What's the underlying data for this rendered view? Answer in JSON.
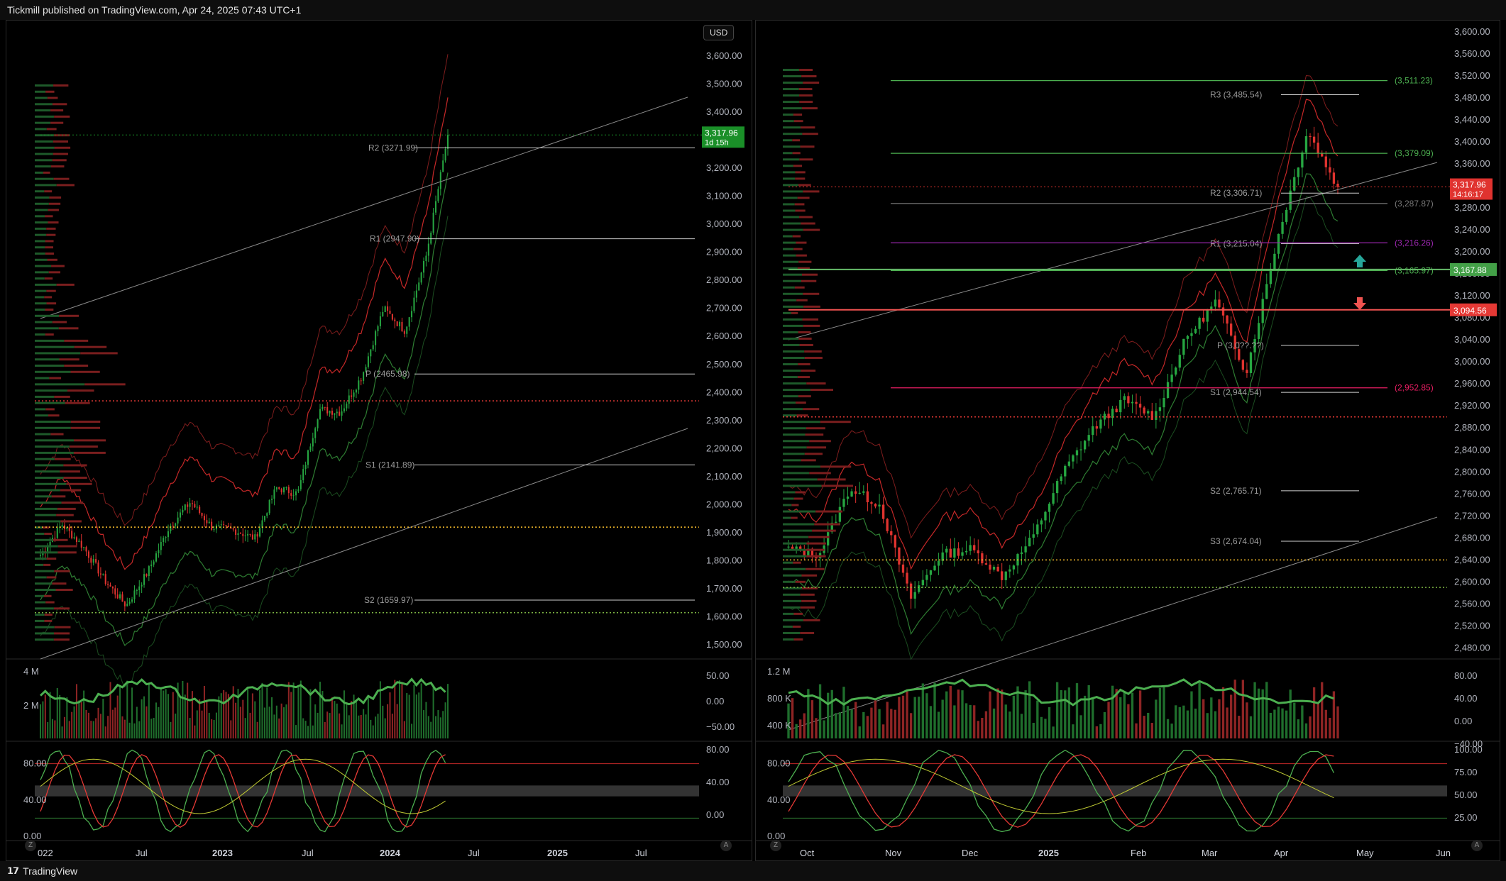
{
  "header": {
    "text": "Tickmill published on TradingView.com, Apr 24, 2025 07:43 UTC+1"
  },
  "footer": {
    "brand": "TradingView"
  },
  "left_panel": {
    "currency_button": "USD",
    "price_tag": {
      "value": "3,317.96",
      "countdown": "1d 15h"
    },
    "pivot_labels": [
      "R2 (3271.99)",
      "R1 (2947.90)",
      "P (2465.98)",
      "S1 (2141.89)",
      "S2 (1659.97)"
    ],
    "price_axis": [
      "3,600.00",
      "3,500.00",
      "3,400.00",
      "3,300.00",
      "3,200.00",
      "3,100.00",
      "3,000.00",
      "2,900.00",
      "2,800.00",
      "2,700.00",
      "2,600.00",
      "2,500.00",
      "2,400.00",
      "2,300.00",
      "2,200.00",
      "2,100.00",
      "2,000.00",
      "1,900.00",
      "1,800.00",
      "1,700.00",
      "1,600.00",
      "1,500.00"
    ],
    "volume_left_axis": [
      "4 M",
      "2 M"
    ],
    "volume_right_axis": [
      "50.00",
      "0.00",
      "−50.00"
    ],
    "stoch_left_axis": [
      "80.00",
      "40.00",
      "0.00"
    ],
    "stoch_right_axis": [
      "80.00",
      "40.00",
      "0.00"
    ],
    "time_axis": [
      "022",
      "Jul",
      "2023",
      "Jul",
      "2024",
      "Jul",
      "2025",
      "Jul"
    ],
    "corner_left": "Z",
    "corner_right": "A"
  },
  "right_panel": {
    "price_tag": {
      "value": "3,317.96",
      "countdown": "14:16:17"
    },
    "level_tag_green": "3,167.88",
    "level_tag_red": "3,094.56",
    "pivot_labels": [
      "R3 (3,485.54)",
      "R2 (3,306.71)",
      "R1 (3,215.04)",
      "P (3,0??.??)",
      "S1 (2,944.54)",
      "S2 (2,765.71)",
      "S3 (2,674.04)"
    ],
    "fib_labels": [
      "(3,511.23)",
      "(3,379.09)",
      "(3,287.87)",
      "(3,216.26)",
      "(3,165.97)",
      "(2,952.85)"
    ],
    "price_axis": [
      "3,600.00",
      "3,560.00",
      "3,520.00",
      "3,480.00",
      "3,440.00",
      "3,400.00",
      "3,360.00",
      "3,320.00",
      "3,280.00",
      "3,240.00",
      "3,200.00",
      "3,160.00",
      "3,120.00",
      "3,080.00",
      "3,040.00",
      "3,000.00",
      "2,960.00",
      "2,920.00",
      "2,880.00",
      "2,840.00",
      "2,800.00",
      "2,760.00",
      "2,720.00",
      "2,680.00",
      "2,640.00",
      "2,600.00",
      "2,560.00",
      "2,520.00",
      "2,480.00"
    ],
    "volume_left_axis": [
      "1.2 M",
      "800 K",
      "400 K"
    ],
    "volume_right_axis": [
      "80.00",
      "40.00",
      "0.00",
      "−40.00"
    ],
    "stoch_left_axis": [
      "80.00",
      "40.00",
      "0.00"
    ],
    "stoch_right_axis": [
      "100.00",
      "75.00",
      "50.00",
      "25.00"
    ],
    "time_axis": [
      "Oct",
      "Nov",
      "Dec",
      "2025",
      "Feb",
      "Mar",
      "Apr",
      "May",
      "Jun"
    ],
    "corner_left": "Z",
    "corner_right": "A"
  },
  "colors": {
    "up": "#26a641",
    "down": "#e0332f",
    "band_red": "#c62828",
    "band_green": "#2e7d32",
    "pivot": "#cfcfcf",
    "magenta": "#d05ce3",
    "volume_line": "#4caf50"
  },
  "chart_data": [
    {
      "type": "candlestick",
      "title": "",
      "ylim": [
        1450,
        3650
      ],
      "x_ticks": [
        "022",
        "Jul",
        "2023",
        "Jul",
        "2024",
        "Jul",
        "2025",
        "Jul"
      ],
      "approx_close_path": [
        {
          "x": "2022-01",
          "y": 1820
        },
        {
          "x": "2022-03",
          "y": 1930
        },
        {
          "x": "2022-05",
          "y": 1850
        },
        {
          "x": "2022-07",
          "y": 1730
        },
        {
          "x": "2022-09",
          "y": 1640
        },
        {
          "x": "2022-11",
          "y": 1760
        },
        {
          "x": "2023-01",
          "y": 1920
        },
        {
          "x": "2023-04",
          "y": 2010
        },
        {
          "x": "2023-06",
          "y": 1920
        },
        {
          "x": "2023-08",
          "y": 1910
        },
        {
          "x": "2023-10",
          "y": 1880
        },
        {
          "x": "2023-12",
          "y": 2060
        },
        {
          "x": "2024-02",
          "y": 2040
        },
        {
          "x": "2024-04",
          "y": 2340
        },
        {
          "x": "2024-06",
          "y": 2330
        },
        {
          "x": "2024-08",
          "y": 2460
        },
        {
          "x": "2024-10",
          "y": 2700
        },
        {
          "x": "2024-12",
          "y": 2620
        },
        {
          "x": "2025-02",
          "y": 2890
        },
        {
          "x": "2025-04",
          "y": 3318
        }
      ],
      "last_price": 3317.96,
      "pivots": {
        "R2": 3271.99,
        "R1": 2947.9,
        "P": 2465.98,
        "S1": 2141.89,
        "S2": 1659.97
      }
    },
    {
      "type": "candlestick",
      "title": "",
      "ylim": [
        2460,
        3610
      ],
      "x_ticks": [
        "Oct",
        "Nov",
        "Dec",
        "2025",
        "Feb",
        "Mar",
        "Apr",
        "May",
        "Jun"
      ],
      "approx_close_path": [
        {
          "x": "2024-10-01",
          "y": 2660
        },
        {
          "x": "2024-10-15",
          "y": 2650
        },
        {
          "x": "2024-10-30",
          "y": 2770
        },
        {
          "x": "2024-11-05",
          "y": 2740
        },
        {
          "x": "2024-11-14",
          "y": 2570
        },
        {
          "x": "2024-11-25",
          "y": 2650
        },
        {
          "x": "2024-12-10",
          "y": 2660
        },
        {
          "x": "2024-12-30",
          "y": 2610
        },
        {
          "x": "2025-01-15",
          "y": 2680
        },
        {
          "x": "2025-01-30",
          "y": 2800
        },
        {
          "x": "2025-02-10",
          "y": 2880
        },
        {
          "x": "2025-02-24",
          "y": 2930
        },
        {
          "x": "2025-03-05",
          "y": 2900
        },
        {
          "x": "2025-03-20",
          "y": 3040
        },
        {
          "x": "2025-04-01",
          "y": 3110
        },
        {
          "x": "2025-04-08",
          "y": 2980
        },
        {
          "x": "2025-04-14",
          "y": 3220
        },
        {
          "x": "2025-04-22",
          "y": 3420
        },
        {
          "x": "2025-04-24",
          "y": 3318
        }
      ],
      "last_price": 3317.96,
      "levels": {
        "green": 3167.88,
        "red": 3094.56
      },
      "pivots": {
        "R3": 3485.54,
        "R2": 3306.71,
        "R1": 3215.04,
        "S1": 2944.54,
        "S2": 2765.71,
        "S3": 2674.04
      },
      "fib_levels": [
        3511.23,
        3379.09,
        3287.87,
        3216.26,
        3165.97,
        2952.85
      ]
    }
  ]
}
